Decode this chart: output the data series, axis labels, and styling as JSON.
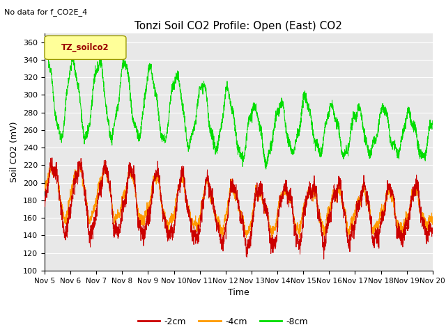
{
  "title": "Tonzi Soil CO2 Profile: Open (East) CO2",
  "subtitle": "No data for f_CO2E_4",
  "ylabel": "Soil CO2 (mV)",
  "xlabel": "Time",
  "ylim": [
    100,
    370
  ],
  "yticks": [
    100,
    120,
    140,
    160,
    180,
    200,
    220,
    240,
    260,
    280,
    300,
    320,
    340,
    360
  ],
  "xtick_labels": [
    "Nov 5",
    "Nov 6",
    "Nov 7",
    "Nov 8",
    "Nov 9",
    "Nov 10",
    "Nov 11",
    "Nov 12",
    "Nov 13",
    "Nov 14",
    "Nov 15",
    "Nov 16",
    "Nov 17",
    "Nov 18",
    "Nov 19",
    "Nov 20"
  ],
  "line_colors": [
    "#cc0000",
    "#ff9900",
    "#00dd00"
  ],
  "line_labels": [
    "-2cm",
    "-4cm",
    "-8cm"
  ],
  "legend_box_color": "#ffff99",
  "legend_box_text": "TZ_soilco2",
  "legend_box_text_color": "#990000",
  "background_color": "#ffffff",
  "plot_bg_color": "#e8e8e8",
  "grid_color": "#ffffff",
  "title_fontsize": 11,
  "axis_label_fontsize": 9,
  "tick_fontsize": 8
}
